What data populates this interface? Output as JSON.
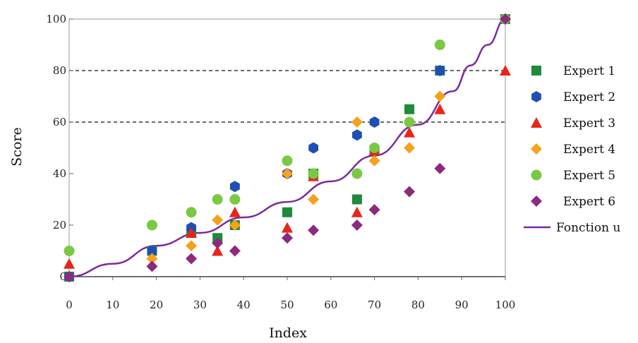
{
  "chart_data": {
    "type": "scatter",
    "title": "",
    "xlabel": "Index",
    "ylabel": "Score",
    "xlim": [
      0,
      100
    ],
    "ylim": [
      0,
      100
    ],
    "x_ticks": [
      "0",
      "10",
      "20",
      "30",
      "40",
      "50",
      "60",
      "70",
      "80",
      "90",
      "100"
    ],
    "y_ticks": [
      "0",
      "20",
      "40",
      "60",
      "80",
      "100"
    ],
    "grid": false,
    "reference_lines_y": [
      60,
      80
    ],
    "legend_position": "right",
    "series": [
      {
        "name": "Expert 1",
        "marker": "square",
        "color": "#1e8a3c",
        "points": [
          [
            0,
            0
          ],
          [
            19,
            10
          ],
          [
            28,
            17
          ],
          [
            34,
            15
          ],
          [
            38,
            20
          ],
          [
            50,
            25
          ],
          [
            56,
            40
          ],
          [
            66,
            30
          ],
          [
            70,
            49
          ],
          [
            78,
            65
          ],
          [
            85,
            80
          ],
          [
            100,
            100
          ]
        ]
      },
      {
        "name": "Expert 2",
        "marker": "hexagon",
        "color": "#1f4fb5",
        "points": [
          [
            0,
            0
          ],
          [
            19,
            10
          ],
          [
            28,
            19
          ],
          [
            38,
            35
          ],
          [
            50,
            40
          ],
          [
            56,
            50
          ],
          [
            66,
            55
          ],
          [
            70,
            60
          ],
          [
            85,
            80
          ],
          [
            100,
            100
          ]
        ]
      },
      {
        "name": "Expert 3",
        "marker": "triangle",
        "color": "#e8251b",
        "points": [
          [
            0,
            5
          ],
          [
            28,
            17
          ],
          [
            34,
            10
          ],
          [
            38,
            25
          ],
          [
            50,
            19
          ],
          [
            56,
            39
          ],
          [
            66,
            25
          ],
          [
            70,
            49
          ],
          [
            78,
            56
          ],
          [
            85,
            65
          ],
          [
            100,
            80
          ]
        ]
      },
      {
        "name": "Expert 4",
        "marker": "diamond",
        "color": "#f5a21c",
        "points": [
          [
            0,
            0
          ],
          [
            19,
            7
          ],
          [
            28,
            12
          ],
          [
            34,
            22
          ],
          [
            38,
            20
          ],
          [
            50,
            40
          ],
          [
            56,
            30
          ],
          [
            66,
            60
          ],
          [
            70,
            45
          ],
          [
            78,
            50
          ],
          [
            85,
            70
          ],
          [
            100,
            100
          ]
        ]
      },
      {
        "name": "Expert 5",
        "marker": "circle",
        "color": "#7ac943",
        "points": [
          [
            0,
            10
          ],
          [
            19,
            20
          ],
          [
            28,
            25
          ],
          [
            34,
            30
          ],
          [
            38,
            30
          ],
          [
            50,
            45
          ],
          [
            56,
            40
          ],
          [
            66,
            40
          ],
          [
            70,
            50
          ],
          [
            78,
            60
          ],
          [
            85,
            90
          ],
          [
            100,
            100
          ]
        ]
      },
      {
        "name": "Expert 6",
        "marker": "diamond",
        "color": "#8c2a7e",
        "points": [
          [
            0,
            0
          ],
          [
            19,
            4
          ],
          [
            28,
            7
          ],
          [
            34,
            13
          ],
          [
            38,
            10
          ],
          [
            50,
            15
          ],
          [
            56,
            18
          ],
          [
            66,
            20
          ],
          [
            70,
            26
          ],
          [
            78,
            33
          ],
          [
            85,
            42
          ],
          [
            100,
            100
          ]
        ]
      }
    ],
    "curve": {
      "name": "Fonction u",
      "color": "#7a2aa0",
      "points": [
        [
          0,
          0
        ],
        [
          10,
          5
        ],
        [
          20,
          12
        ],
        [
          30,
          17
        ],
        [
          40,
          23
        ],
        [
          50,
          29
        ],
        [
          60,
          37
        ],
        [
          70,
          47
        ],
        [
          80,
          59
        ],
        [
          88,
          72
        ],
        [
          92,
          82
        ],
        [
          96,
          90
        ],
        [
          100,
          100
        ]
      ]
    }
  }
}
